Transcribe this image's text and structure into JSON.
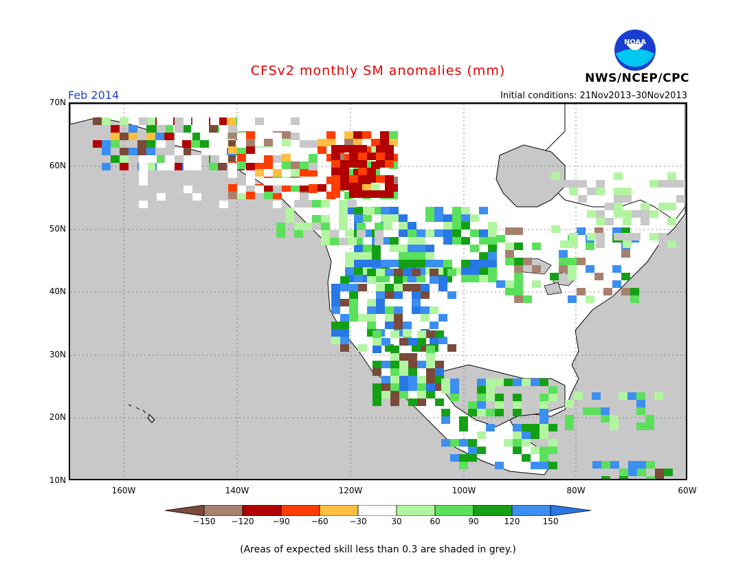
{
  "title": "CFSv2 monthly SM anomalies (mm)",
  "valid_month": "Feb 2014",
  "initial_conditions": "Initial conditions: 21Nov2013–30Nov2013",
  "agency": "NWS/NCEP/CPC",
  "logo_text": "NOAA",
  "lat_labels": [
    "70N",
    "60N",
    "50N",
    "40N",
    "30N",
    "20N",
    "10N"
  ],
  "lon_labels": [
    "160W",
    "140W",
    "120W",
    "100W",
    "80W",
    "60W"
  ],
  "colorbar": {
    "colors": [
      "#7a4a3a",
      "#a88070",
      "#b20000",
      "#ff3d00",
      "#ffbf40",
      "#ffffff",
      "#b2f5a0",
      "#5ae05a",
      "#14a014",
      "#3c8ef0",
      "#2878e6"
    ],
    "labels": [
      "−150",
      "−120",
      "−90",
      "−60",
      "−30",
      "30",
      "60",
      "90",
      "120",
      "150"
    ]
  },
  "footnote": "(Areas of expected skill less than 0.3 are shaded in grey.)",
  "colors": {
    "ocean": "#c8c8c8",
    "land": "#ffffff",
    "title_red": "#e00000",
    "label_blue": "#1f3fd0"
  }
}
